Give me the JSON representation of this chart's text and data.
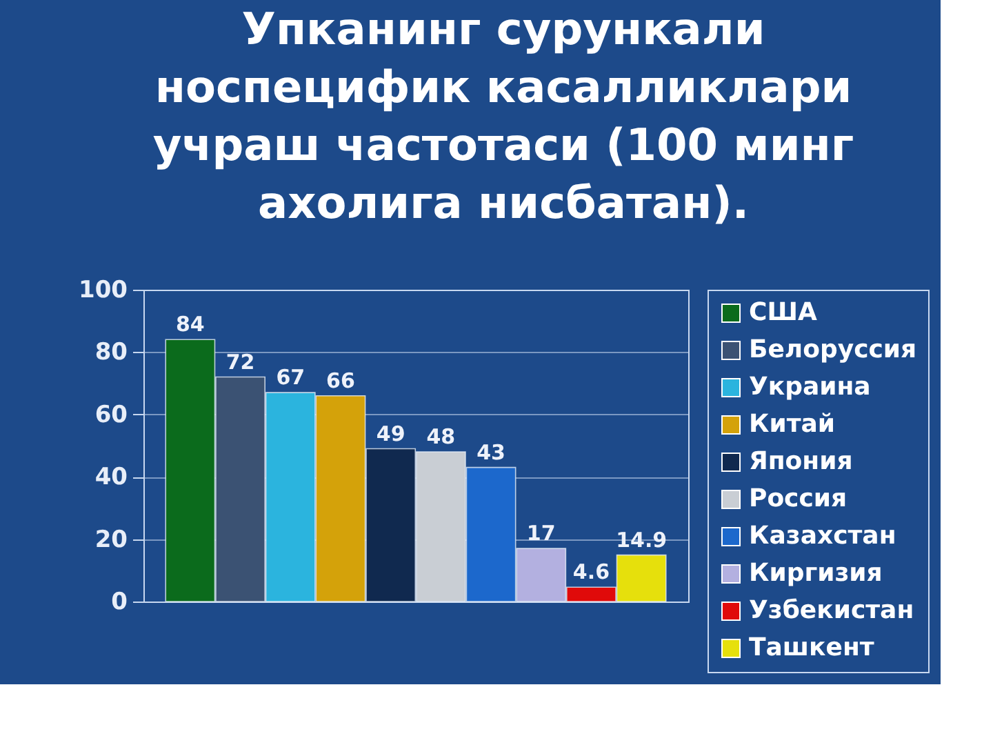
{
  "chart_data": {
    "type": "bar",
    "title": "Упканинг сурункали\nноспецифик касалликлари\nучраш частотаси (100 минг\nахолига нисбатан).",
    "categories": [
      null
    ],
    "series": [
      {
        "name": "США",
        "color": "#0b6b1c",
        "values": [
          84
        ]
      },
      {
        "name": "Белоруссия",
        "color": "#3b5273",
        "values": [
          72
        ]
      },
      {
        "name": "Украина",
        "color": "#2bb4de",
        "values": [
          67
        ]
      },
      {
        "name": "Китай",
        "color": "#d4a20a",
        "values": [
          66
        ]
      },
      {
        "name": "Япония",
        "color": "#10294f",
        "values": [
          49
        ]
      },
      {
        "name": "Россия",
        "color": "#c9ced4",
        "values": [
          48
        ]
      },
      {
        "name": "Казахстан",
        "color": "#1c68cc",
        "values": [
          43
        ]
      },
      {
        "name": "Киргизия",
        "color": "#b3b0e0",
        "values": [
          17
        ]
      },
      {
        "name": "Узбекистан",
        "color": "#e00a0a",
        "values": [
          4.6
        ]
      },
      {
        "name": "Ташкент",
        "color": "#e6e00c",
        "values": [
          14.9
        ]
      }
    ],
    "ylim": [
      0,
      100
    ],
    "yticks": [
      0,
      20,
      40,
      60,
      80,
      100
    ],
    "grid": "y",
    "legend": "right",
    "data_labels": true,
    "tick_labels": "y"
  }
}
